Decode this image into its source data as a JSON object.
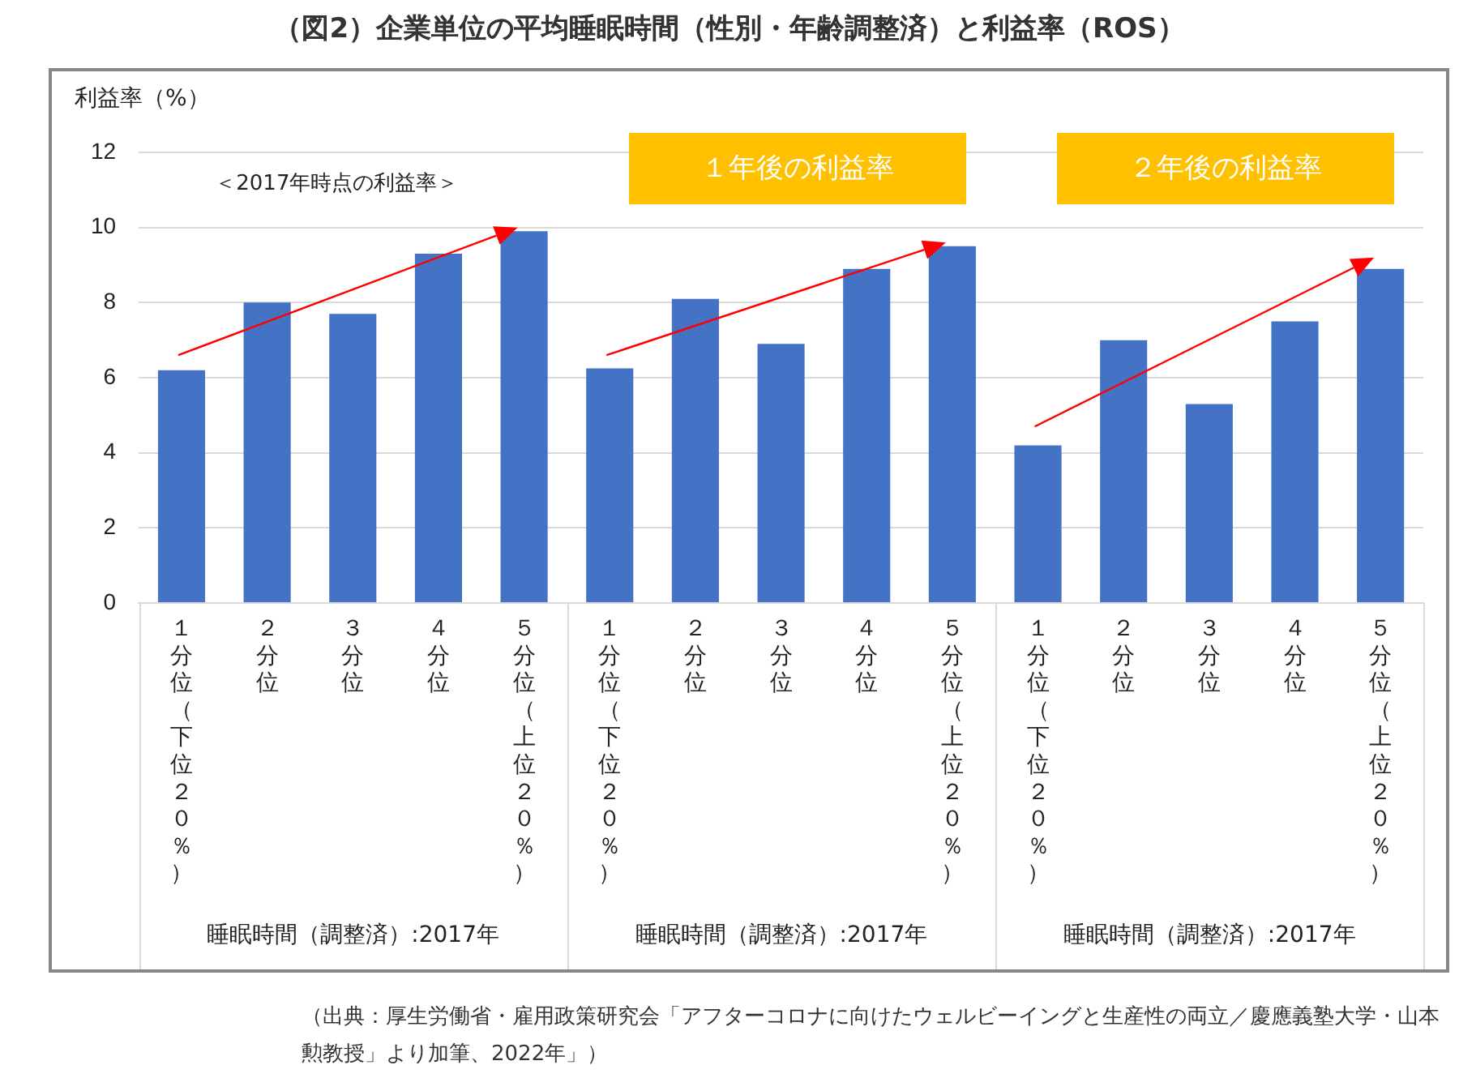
{
  "chart_data": {
    "type": "bar",
    "title": "（図2）企業単位の平均睡眠時間（性別・年齢調整済）と利益率（ROS）",
    "ylabel": "利益率（%）",
    "categories": [
      "１分位（下位２０％）",
      "２分位",
      "３分位",
      "４分位",
      "５分位（上位２０％）",
      "１分位（下位２０％）",
      "２分位",
      "３分位",
      "４分位",
      "５分位（上位２０％）",
      "１分位（下位２０％）",
      "２分位",
      "３分位",
      "４分位",
      "５分位（上位２０％）"
    ],
    "series": [
      {
        "color": "#4472c4",
        "values": [
          6.2,
          8.0,
          7.7,
          9.3,
          9.9,
          6.25,
          8.1,
          6.9,
          8.9,
          9.5,
          4.2,
          7.0,
          5.3,
          7.5,
          8.9
        ]
      }
    ],
    "ylim": [
      0,
      12
    ],
    "yticks": [
      0,
      2,
      4,
      6,
      8,
      10,
      12
    ],
    "grid": "y",
    "legend": false,
    "annotations": [
      "＜2017年時点の利益率＞",
      "１年後の利益率",
      "２年後の利益率",
      "睡眠時間（調整済）:2017年",
      "睡眠時間（調整済）:2017年",
      "睡眠時間（調整済）:2017年",
      "（出典：厚生労働省・雇用政策研究会「アフターコロナに向けたウェルビーイングと生産性の両立／慶應義塾大学・山本勲教授」より加筆、2022年」）"
    ]
  }
}
